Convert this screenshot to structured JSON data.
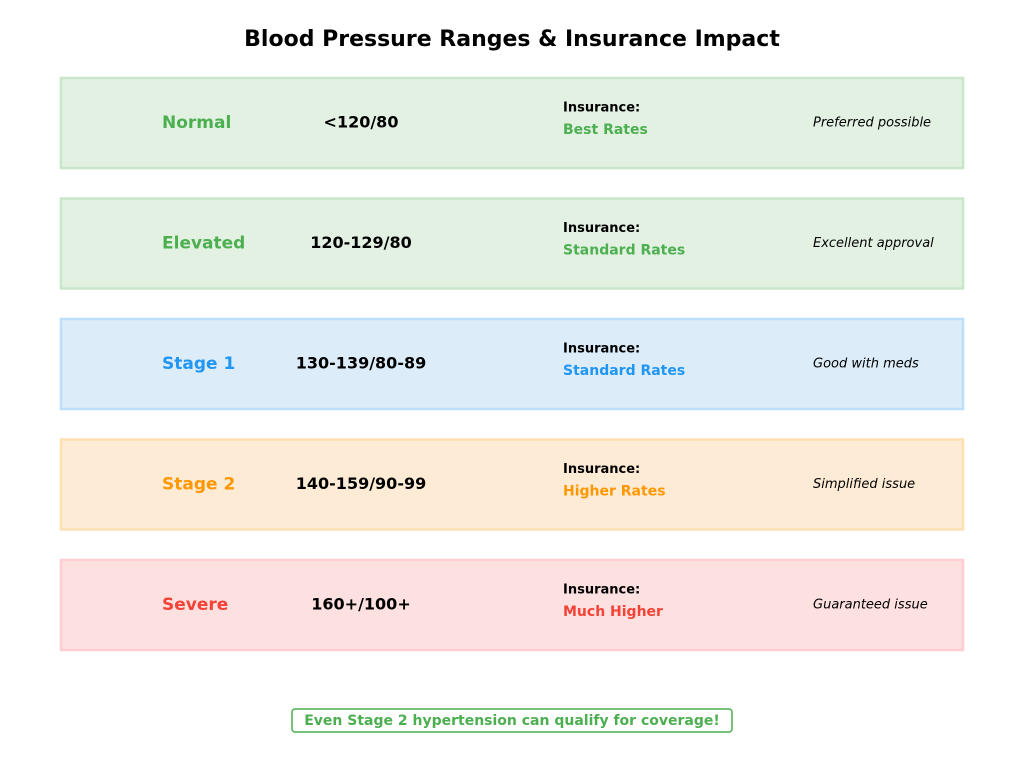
{
  "header": {
    "title": "Blood Pressure Ranges & Insurance Impact"
  },
  "rows": [
    {
      "category": "Normal",
      "range": "<120/80",
      "insurance_label": "Insurance:",
      "rate": "Best Rates",
      "note": "Preferred possible",
      "color": "#4caf50",
      "background": "#e3f1e3",
      "border": "#c8e6c9"
    },
    {
      "category": "Elevated",
      "range": "120-129/80",
      "insurance_label": "Insurance:",
      "rate": "Standard Rates",
      "note": "Excellent approval",
      "color": "#4caf50",
      "background": "#e3f1e3",
      "border": "#c8e6c9"
    },
    {
      "category": "Stage 1",
      "range": "130-139/80-89",
      "insurance_label": "Insurance:",
      "rate": "Standard Rates",
      "note": "Good with meds",
      "color": "#2196f3",
      "background": "#dcecf9",
      "border": "#bbdefb"
    },
    {
      "category": "Stage 2",
      "range": "140-159/90-99",
      "insurance_label": "Insurance:",
      "rate": "Higher Rates",
      "note": "Simplified issue",
      "color": "#ff9800",
      "background": "#fdebd5",
      "border": "#ffe0b2"
    },
    {
      "category": "Severe",
      "range": "160+/100+",
      "insurance_label": "Insurance:",
      "rate": "Much Higher",
      "note": "Guaranteed issue",
      "color": "#f44336",
      "background": "#fde0e0",
      "border": "#ffcdd2"
    }
  ],
  "footer": {
    "text": "Even Stage 2 hypertension can qualify for coverage!"
  }
}
